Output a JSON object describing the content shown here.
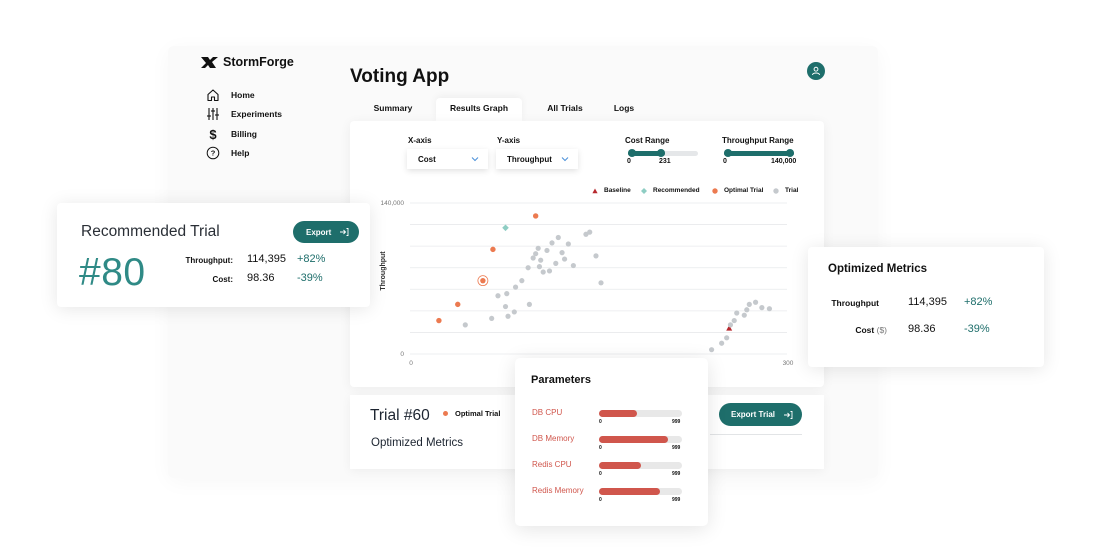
{
  "app": {
    "brand": "StormForge",
    "title": "Voting App"
  },
  "colors": {
    "accent": "#1e6e6b",
    "optimal": "#ec7a50",
    "recommended": "#8ecdc3",
    "baseline": "#b7282e",
    "trial": "#c5c9cd",
    "param_bar": "#d0564c"
  },
  "sidebar": {
    "items": [
      {
        "label": "Home",
        "icon": "home-icon"
      },
      {
        "label": "Experiments",
        "icon": "sliders-icon"
      },
      {
        "label": "Billing",
        "icon": "dollar-icon"
      },
      {
        "label": "Help",
        "icon": "help-icon"
      }
    ]
  },
  "tabs": [
    {
      "label": "Summary",
      "active": false
    },
    {
      "label": "Results Graph",
      "active": true
    },
    {
      "label": "All Trials",
      "active": false
    },
    {
      "label": "Logs",
      "active": false
    }
  ],
  "controls": {
    "xaxis": {
      "label": "X-axis",
      "value": "Cost"
    },
    "yaxis": {
      "label": "Y-axis",
      "value": "Throughput"
    },
    "cost_range": {
      "label": "Cost Range",
      "min": "0",
      "max": "231",
      "fill_fraction": 0.53
    },
    "throughput_range": {
      "label": "Throughput Range",
      "min": "0",
      "max": "140,000",
      "fill_fraction": 1.0
    }
  },
  "legend": [
    "Baseline",
    "Recommended",
    "Optimal Trial",
    "Trial"
  ],
  "chart_data": {
    "type": "scatter",
    "xlabel": "",
    "ylabel": "Throughput",
    "xlim": [
      0,
      300
    ],
    "ylim": [
      0,
      140000
    ],
    "x_ticks": [
      "0",
      "300"
    ],
    "y_ticks": [
      "0",
      "140,000"
    ],
    "grid": true,
    "series": [
      {
        "name": "Baseline",
        "points": [
          [
            254,
            24000
          ]
        ]
      },
      {
        "name": "Recommended",
        "points": [
          [
            76,
            117000
          ]
        ]
      },
      {
        "name": "Optimal Trial",
        "points": [
          [
            23,
            31000
          ],
          [
            38,
            46000
          ],
          [
            58,
            68000
          ],
          [
            66,
            97000
          ],
          [
            100,
            128000
          ]
        ],
        "highlight_index": 2
      },
      {
        "name": "Trial",
        "points": [
          [
            44,
            27000
          ],
          [
            65,
            33000
          ],
          [
            70,
            54000
          ],
          [
            76,
            44000
          ],
          [
            77,
            56000
          ],
          [
            78,
            35000
          ],
          [
            83,
            39000
          ],
          [
            84,
            62000
          ],
          [
            89,
            68000
          ],
          [
            94,
            80000
          ],
          [
            95,
            46000
          ],
          [
            98,
            89000
          ],
          [
            100,
            93000
          ],
          [
            102,
            98000
          ],
          [
            103,
            81000
          ],
          [
            104,
            87000
          ],
          [
            106,
            76000
          ],
          [
            109,
            96000
          ],
          [
            111,
            77000
          ],
          [
            113,
            103000
          ],
          [
            116,
            84000
          ],
          [
            118,
            108000
          ],
          [
            121,
            94000
          ],
          [
            123,
            88000
          ],
          [
            126,
            102000
          ],
          [
            130,
            82000
          ],
          [
            140,
            111000
          ],
          [
            143,
            113000
          ],
          [
            148,
            91000
          ],
          [
            152,
            66000
          ],
          [
            240,
            4000
          ],
          [
            248,
            10000
          ],
          [
            252,
            15000
          ],
          [
            255,
            27000
          ],
          [
            258,
            31000
          ],
          [
            260,
            38000
          ],
          [
            266,
            36000
          ],
          [
            268,
            41000
          ],
          [
            270,
            46000
          ],
          [
            275,
            48000
          ],
          [
            280,
            43000
          ],
          [
            286,
            42000
          ]
        ]
      }
    ]
  },
  "recommended": {
    "title": "Recommended Trial",
    "number": "#80",
    "export_label": "Export",
    "throughput_label": "Throughput:",
    "throughput_value": "114,395",
    "throughput_change": "+82%",
    "cost_label": "Cost:",
    "cost_value": "98.36",
    "cost_change": "-39%"
  },
  "optimized": {
    "title": "Optimized Metrics",
    "throughput_label": "Throughput",
    "throughput_value": "114,395",
    "throughput_change": "+82%",
    "cost_label": "Cost",
    "cost_unit": "($)",
    "cost_value": "98.36",
    "cost_change": "-39%"
  },
  "trial": {
    "title": "Trial #60",
    "badge": "Optimal Trial",
    "export_label": "Export Trial",
    "metrics_label": "Optimized Metrics"
  },
  "parameters": {
    "title": "Parameters",
    "items": [
      {
        "name": "DB CPU",
        "fraction": 0.46,
        "min": "0",
        "max": "999"
      },
      {
        "name": "DB Memory",
        "fraction": 0.83,
        "min": "0",
        "max": "999"
      },
      {
        "name": "Redis CPU",
        "fraction": 0.51,
        "min": "0",
        "max": "999"
      },
      {
        "name": "Redis Memory",
        "fraction": 0.74,
        "min": "0",
        "max": "999"
      }
    ]
  }
}
